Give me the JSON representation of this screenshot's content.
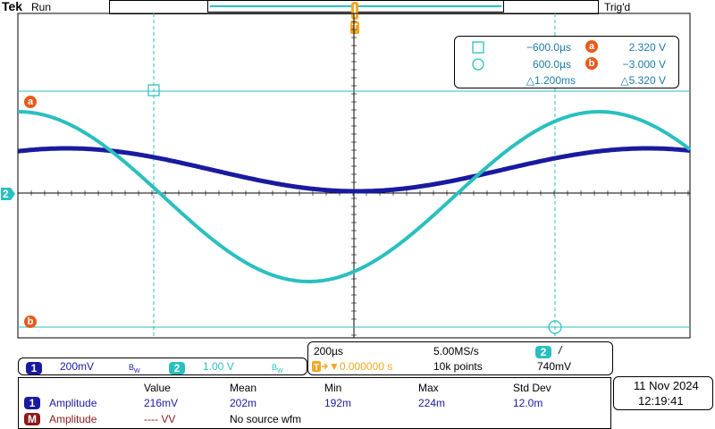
{
  "header": {
    "brand": "Tek",
    "run_state": "Run",
    "trigger_state": "Trig'd",
    "trigger_marker": "T"
  },
  "waveforms": {
    "ch1": {
      "color": "#1a1aa0",
      "channel": "1"
    },
    "ch2": {
      "color": "#2abfbf",
      "channel": "2"
    }
  },
  "ref_markers": {
    "a": "a",
    "b": "b",
    "ch2": "2"
  },
  "cursor_readout": {
    "t1": "−600.0µs",
    "t2": "600.0µs",
    "a_val": "2.320 V",
    "b_val": "−3.000 V",
    "dt": "△1.200ms",
    "dv": "△5.320 V"
  },
  "channels_bar": {
    "ch1_label": "1",
    "ch1_scale": "200mV",
    "ch1_bw": "B",
    "ch2_label": "2",
    "ch2_scale": "1.00 V",
    "ch2_bw": "B"
  },
  "timebase": {
    "horizontal": "200µs",
    "sample_rate": "5.00MS/s",
    "trig_ch": "2",
    "trig_slope": "/",
    "trig_pos": "▼0.000000 s",
    "record_len": "10k points",
    "trig_level": "740mV"
  },
  "measurements": {
    "headers": [
      "Value",
      "Mean",
      "Min",
      "Max",
      "Std Dev"
    ],
    "rows": [
      {
        "badge": "1",
        "name": "Amplitude",
        "value": "216mV",
        "mean": "202m",
        "min": "192m",
        "max": "224m",
        "std": "12.0m"
      },
      {
        "badge": "M",
        "name": "Amplitude",
        "value": "---- VV",
        "mean": "No source wfm",
        "min": "",
        "max": "",
        "std": ""
      }
    ]
  },
  "datetime": {
    "date": "11 Nov  2024",
    "time": "12:19:41"
  }
}
